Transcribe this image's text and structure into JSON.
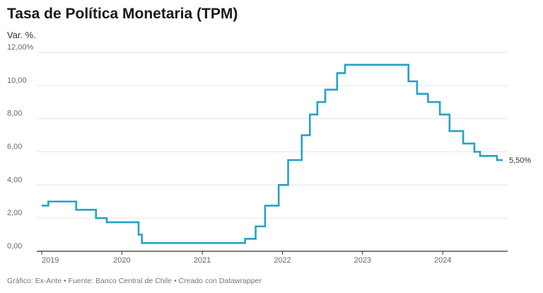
{
  "title": "Tasa de Política Monetaria (TPM)",
  "subtitle": "Var. %.",
  "footer": "Gráfico: Ex-Ante • Fuente: Banco Central de Chile • Creado con Datawrapper",
  "colors": {
    "line": "#28a1c8",
    "grid": "#e6e6e6",
    "axis": "#333333"
  },
  "chart_data": {
    "type": "line",
    "title": "Tasa de Política Monetaria (TPM)",
    "ylabel": "Var. %.",
    "ylim": [
      0,
      12
    ],
    "xlim": [
      "2019-01-01",
      "2024-09-30"
    ],
    "y_ticks": [
      {
        "value": 0,
        "label": "0,00"
      },
      {
        "value": 2,
        "label": "2,00"
      },
      {
        "value": 4,
        "label": "4,00"
      },
      {
        "value": 6,
        "label": "6,00"
      },
      {
        "value": 8,
        "label": "8,00"
      },
      {
        "value": 10,
        "label": "10,00"
      },
      {
        "value": 12,
        "label": "12,00%"
      }
    ],
    "x_ticks": [
      {
        "date": "2019-01-01",
        "label": "2019"
      },
      {
        "date": "2020-01-01",
        "label": "2020"
      },
      {
        "date": "2021-01-01",
        "label": "2021"
      },
      {
        "date": "2022-01-01",
        "label": "2022"
      },
      {
        "date": "2023-01-01",
        "label": "2023"
      },
      {
        "date": "2024-01-01",
        "label": "2024"
      }
    ],
    "grid": true,
    "step": true,
    "series": [
      {
        "points": [
          [
            "2019-01-01",
            2.75
          ],
          [
            "2019-01-31",
            3.0
          ],
          [
            "2019-06-07",
            2.5
          ],
          [
            "2019-09-05",
            2.0
          ],
          [
            "2019-10-24",
            1.75
          ],
          [
            "2020-03-17",
            1.0
          ],
          [
            "2020-04-01",
            0.5
          ],
          [
            "2021-07-15",
            0.75
          ],
          [
            "2021-09-01",
            1.5
          ],
          [
            "2021-10-14",
            2.75
          ],
          [
            "2021-12-15",
            4.0
          ],
          [
            "2022-01-27",
            5.5
          ],
          [
            "2022-03-30",
            7.0
          ],
          [
            "2022-05-06",
            8.25
          ],
          [
            "2022-06-09",
            9.0
          ],
          [
            "2022-07-15",
            9.75
          ],
          [
            "2022-09-07",
            10.75
          ],
          [
            "2022-10-13",
            11.25
          ],
          [
            "2023-07-29",
            10.25
          ],
          [
            "2023-09-06",
            9.5
          ],
          [
            "2023-10-26",
            9.0
          ],
          [
            "2023-12-19",
            8.25
          ],
          [
            "2024-02-01",
            7.25
          ],
          [
            "2024-04-03",
            6.5
          ],
          [
            "2024-05-24",
            6.0
          ],
          [
            "2024-06-19",
            5.75
          ],
          [
            "2024-09-04",
            5.5
          ]
        ],
        "end_label": "5,50%"
      }
    ]
  }
}
